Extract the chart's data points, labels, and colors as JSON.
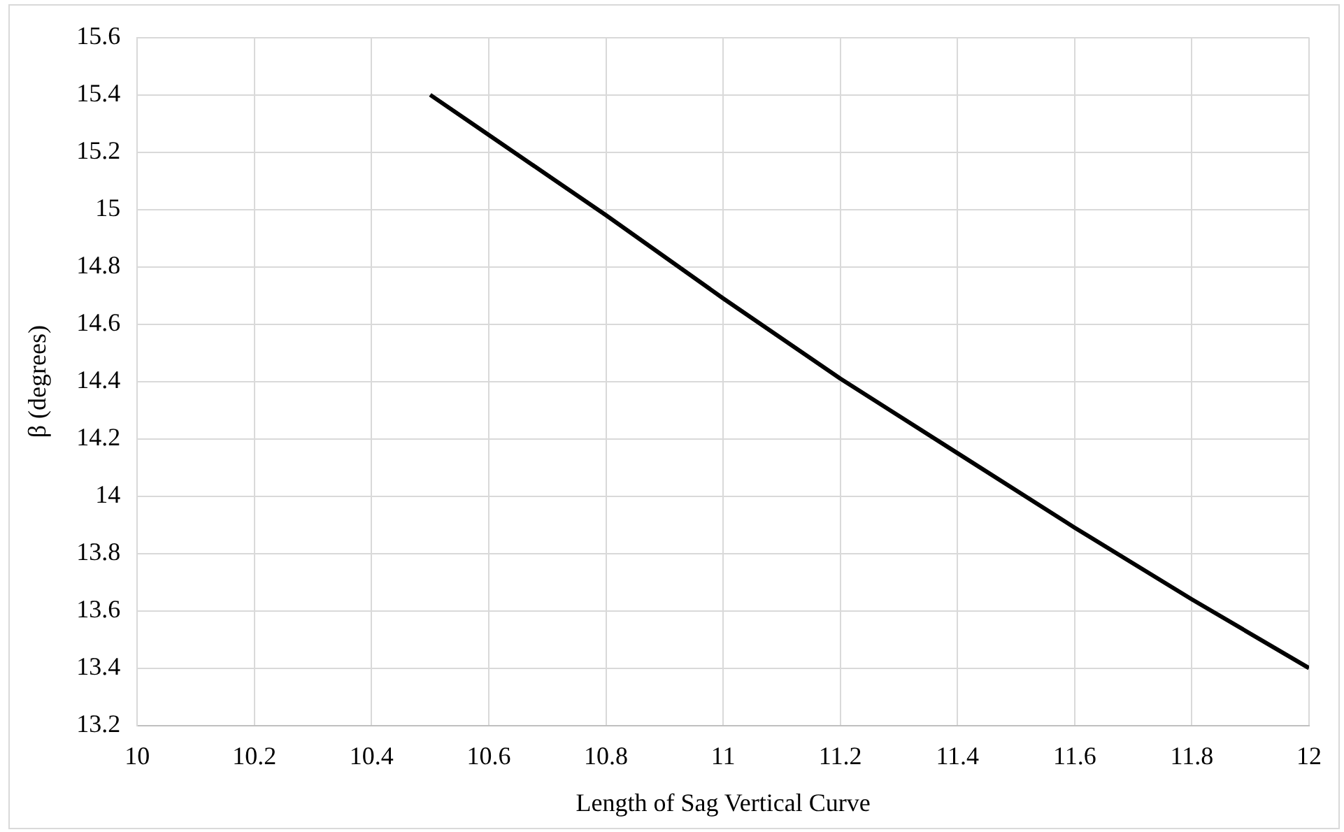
{
  "chart_data": {
    "type": "line",
    "xlabel": "Length of Sag Vertical Curve",
    "ylabel": "β (degrees)",
    "x": [
      10.5,
      10.6,
      10.8,
      11,
      11.2,
      11.4,
      11.6,
      11.8,
      12
    ],
    "series": [
      {
        "color": "#000000",
        "values": [
          15.4,
          15.26,
          14.98,
          14.69,
          14.41,
          14.15,
          13.89,
          13.64,
          13.4
        ]
      }
    ],
    "xlim": [
      10,
      12
    ],
    "xticks": [
      10,
      10.2,
      10.4,
      10.6,
      10.8,
      11,
      11.2,
      11.4,
      11.6,
      11.8,
      12
    ],
    "ylim": [
      13.2,
      15.6
    ],
    "yticks": [
      13.2,
      13.4,
      13.6,
      13.8,
      14,
      14.2,
      14.4,
      14.6,
      14.8,
      15,
      15.2,
      15.4,
      15.6
    ],
    "grid": true,
    "legend": false,
    "marker": "none",
    "line_style": "solid"
  }
}
